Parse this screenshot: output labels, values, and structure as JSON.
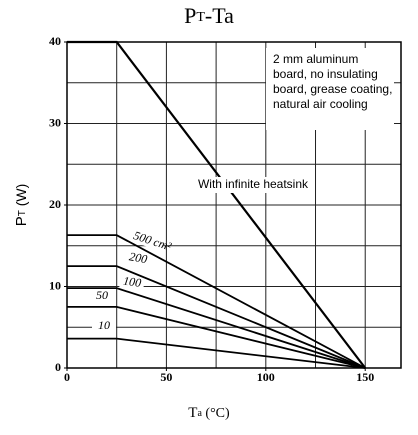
{
  "chart_data": {
    "type": "line",
    "title": [
      "P",
      "T",
      "-Ta"
    ],
    "x_label": [
      "T",
      "a",
      " (°C)"
    ],
    "y_label": [
      "P",
      "T",
      " (W)"
    ],
    "x": [
      0,
      25,
      150
    ],
    "series": [
      {
        "name": "With infinite heatsink",
        "color": "#000000",
        "values": [
          40,
          40,
          0
        ]
      },
      {
        "name": "500 cm²",
        "color": "#000000",
        "values": [
          16.3,
          16.3,
          0
        ]
      },
      {
        "name": "200",
        "color": "#000000",
        "values": [
          12.5,
          12.5,
          0
        ]
      },
      {
        "name": "100",
        "color": "#000000",
        "values": [
          9.8,
          9.8,
          0
        ]
      },
      {
        "name": "50",
        "color": "#000000",
        "values": [
          7.5,
          7.5,
          0
        ]
      },
      {
        "name": "10",
        "color": "#000000",
        "values": [
          3.6,
          3.6,
          0
        ]
      }
    ],
    "xlim": [
      0,
      168
    ],
    "ylim": [
      0,
      40
    ],
    "xticks": [
      0,
      50,
      100,
      150
    ],
    "yticks": [
      0,
      10,
      20,
      30,
      40
    ],
    "xgrid": [
      25,
      50,
      75,
      100,
      125,
      150
    ],
    "ygrid": [
      5,
      10,
      15,
      20,
      25,
      30,
      35
    ],
    "note": [
      "2 mm aluminum",
      "board, no insulating",
      "board, grease coating,",
      "natural air cooling"
    ]
  }
}
